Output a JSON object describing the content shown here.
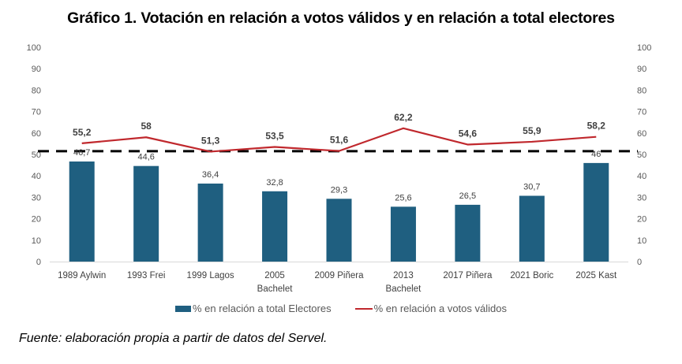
{
  "chart_data": {
    "type": "bar",
    "title": "Gráfico 1. Votación en relación a votos válidos y en relación a total electores",
    "categories": [
      [
        "1989 Aylwin"
      ],
      [
        "1993 Frei"
      ],
      [
        "1999 Lagos"
      ],
      [
        "2005",
        "Bachelet"
      ],
      [
        "2009 Piñera"
      ],
      [
        "2013",
        "Bachelet"
      ],
      [
        "2017 Piñera"
      ],
      [
        "2021 Boric"
      ],
      [
        "2025 Kast"
      ]
    ],
    "series": [
      {
        "name": "% en relación a total Electores",
        "type": "bar",
        "color": "#1f5f80",
        "values": [
          46.7,
          44.6,
          36.4,
          32.8,
          29.3,
          25.6,
          26.5,
          30.7,
          46
        ],
        "labels": [
          "46,7",
          "44,6",
          "36,4",
          "32,8",
          "29,3",
          "25,6",
          "26,5",
          "30,7",
          "46"
        ]
      },
      {
        "name": "% en relación a votos válidos",
        "type": "line",
        "color": "#c0282d",
        "values": [
          55.2,
          58,
          51.3,
          53.5,
          51.6,
          62.2,
          54.6,
          55.9,
          58.2
        ],
        "labels": [
          "55,2",
          "58",
          "51,3",
          "53,5",
          "51,6",
          "62,2",
          "54,6",
          "55,9",
          "58,2"
        ]
      }
    ],
    "reference_line": {
      "value": 51.5,
      "style": "dashed",
      "color": "#000000"
    },
    "ylim": [
      0,
      100
    ],
    "yticks": [
      0,
      10,
      20,
      30,
      40,
      50,
      60,
      70,
      80,
      90,
      100
    ],
    "y2lim": [
      0,
      100
    ],
    "y2ticks": [
      0,
      10,
      20,
      30,
      40,
      50,
      60,
      70,
      80,
      90,
      100
    ],
    "xlabel": "",
    "ylabel": "",
    "grid": false,
    "legend_position": "bottom"
  },
  "legend": {
    "bar_label": "% en relación a total Electores",
    "line_label": "% en relación a votos válidos"
  },
  "source": "Fuente: elaboración propia a partir de datos del Servel."
}
